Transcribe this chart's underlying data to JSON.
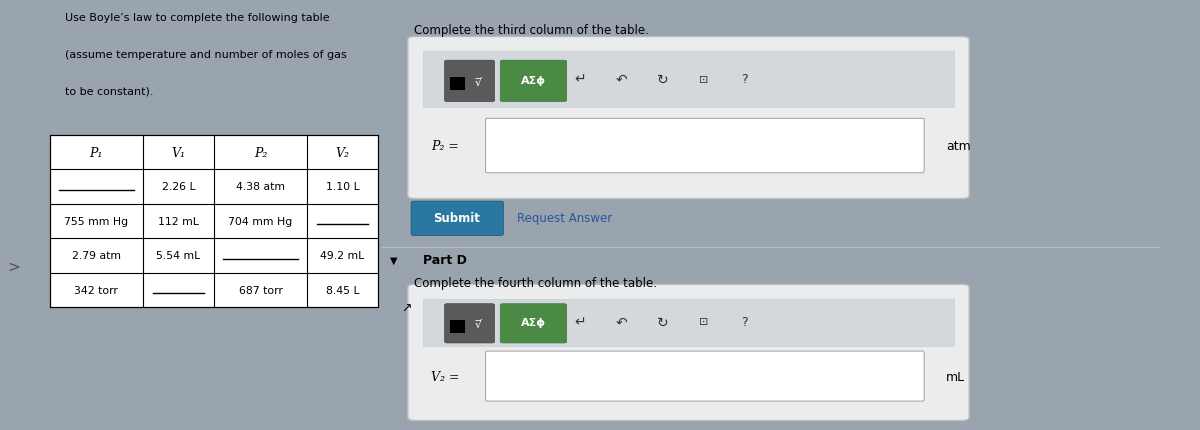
{
  "overall_bg": "#9aa4ae",
  "left_bg": "#b8c4cc",
  "right_bg": "#d8dde2",
  "title_text_lines": [
    "Use Boyle’s law to complete the following table",
    "(assume temperature and number of moles of gas",
    "to be constant)."
  ],
  "table_headers": [
    "P₁",
    "V₁",
    "P₂",
    "V₂"
  ],
  "table_rows": [
    [
      "___",
      "2.26 L",
      "4.38 atm",
      "1.10 L"
    ],
    [
      "755 mm Hg",
      "112 mL",
      "704 mm Hg",
      "___"
    ],
    [
      "2.79 atm",
      "5.54 mL",
      "___",
      "49.2 mL"
    ],
    [
      "342 torr",
      "___",
      "687 torr",
      "8.45 L"
    ]
  ],
  "table_bg": "white",
  "table_border": "#444444",
  "instr1": "Complete the third column of the table.",
  "input_label1": "P₂ =",
  "input_unit1": "atm",
  "submit_text": "Submit",
  "request_answer_text": "Request Answer",
  "part_d_text": "Part D",
  "instr2": "Complete the fourth column of the table.",
  "input_label2": "V₂ =",
  "input_unit2": "mL",
  "answer_box_bg": "#e4e8ec",
  "answer_box_border": "#aaaaaa",
  "toolbar_dark_btn": "#5a5a5a",
  "toolbar_green_btn": "#4a8a44",
  "toolbar_row_bg": "#d0d4d8",
  "input_field_bg": "white",
  "input_field_border": "#aaaaaa",
  "submit_btn_color": "#2a78a0",
  "request_answer_color": "#2a5599",
  "tiny_tab_text": ". ... . .",
  "left_side_marker": "s",
  "arrow_marker": "↑"
}
